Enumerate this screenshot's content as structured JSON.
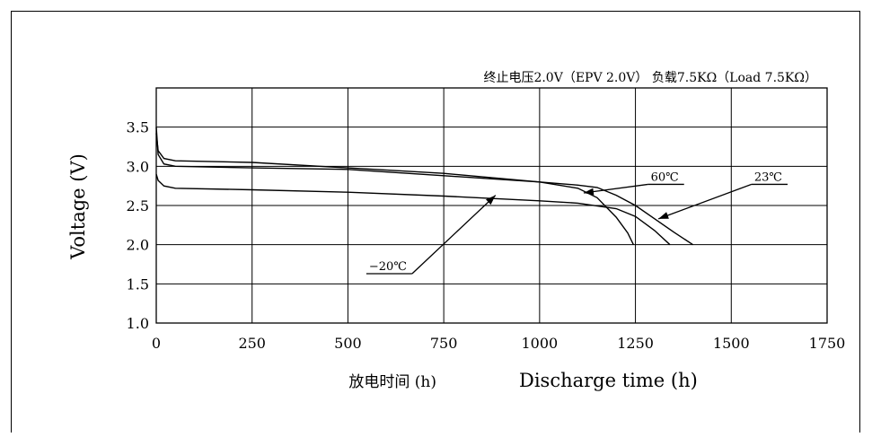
{
  "chart_data": {
    "type": "line",
    "title": "终止电压2.0V（EPV 2.0V） 负载7.5KΩ（Load 7.5KΩ）",
    "xlabel_cn": "放电时间 (h)",
    "xlabel": "Discharge time (h)",
    "ylabel": "Voltage (V)",
    "xlim": [
      0,
      1750
    ],
    "ylim": [
      1.0,
      4.0
    ],
    "xticks": [
      0,
      250,
      500,
      750,
      1000,
      1250,
      1500,
      1750
    ],
    "yticks": [
      1.0,
      1.5,
      2.0,
      2.5,
      3.0,
      3.5
    ],
    "xtick_labels": [
      "0",
      "250",
      "500",
      "750",
      "1000",
      "1250",
      "1500",
      "1750"
    ],
    "ytick_labels": [
      "1.0",
      "1.5",
      "2.0",
      "2.5",
      "3.0",
      "3.5"
    ],
    "grid": true,
    "series": [
      {
        "name": "60℃",
        "points": [
          [
            0,
            3.42
          ],
          [
            5,
            3.2
          ],
          [
            20,
            3.1
          ],
          [
            50,
            3.07
          ],
          [
            250,
            3.05
          ],
          [
            500,
            2.98
          ],
          [
            750,
            2.91
          ],
          [
            1000,
            2.8
          ],
          [
            1100,
            2.72
          ],
          [
            1150,
            2.6
          ],
          [
            1200,
            2.35
          ],
          [
            1230,
            2.15
          ],
          [
            1245,
            2.0
          ]
        ]
      },
      {
        "name": "23℃",
        "points": [
          [
            0,
            3.5
          ],
          [
            5,
            3.15
          ],
          [
            20,
            3.03
          ],
          [
            50,
            3.0
          ],
          [
            250,
            2.98
          ],
          [
            500,
            2.96
          ],
          [
            750,
            2.88
          ],
          [
            1000,
            2.8
          ],
          [
            1100,
            2.76
          ],
          [
            1150,
            2.73
          ],
          [
            1200,
            2.63
          ],
          [
            1250,
            2.5
          ],
          [
            1300,
            2.33
          ],
          [
            1350,
            2.16
          ],
          [
            1400,
            2.0
          ]
        ]
      },
      {
        "name": "−20℃",
        "points": [
          [
            0,
            2.9
          ],
          [
            5,
            2.82
          ],
          [
            20,
            2.75
          ],
          [
            50,
            2.72
          ],
          [
            250,
            2.7
          ],
          [
            500,
            2.67
          ],
          [
            750,
            2.62
          ],
          [
            1000,
            2.56
          ],
          [
            1100,
            2.53
          ],
          [
            1200,
            2.46
          ],
          [
            1250,
            2.36
          ],
          [
            1300,
            2.18
          ],
          [
            1340,
            2.0
          ]
        ]
      }
    ],
    "annotations": [
      {
        "text": "60℃",
        "label_at": [
          1290,
          2.77
        ],
        "arrow_to": [
          1115,
          2.66
        ]
      },
      {
        "text": "23℃",
        "label_at": [
          1560,
          2.77
        ],
        "arrow_to": [
          1310,
          2.33
        ]
      },
      {
        "text": "−20℃",
        "label_at": [
          555,
          1.63
        ],
        "arrow_to": [
          885,
          2.63
        ]
      }
    ]
  }
}
